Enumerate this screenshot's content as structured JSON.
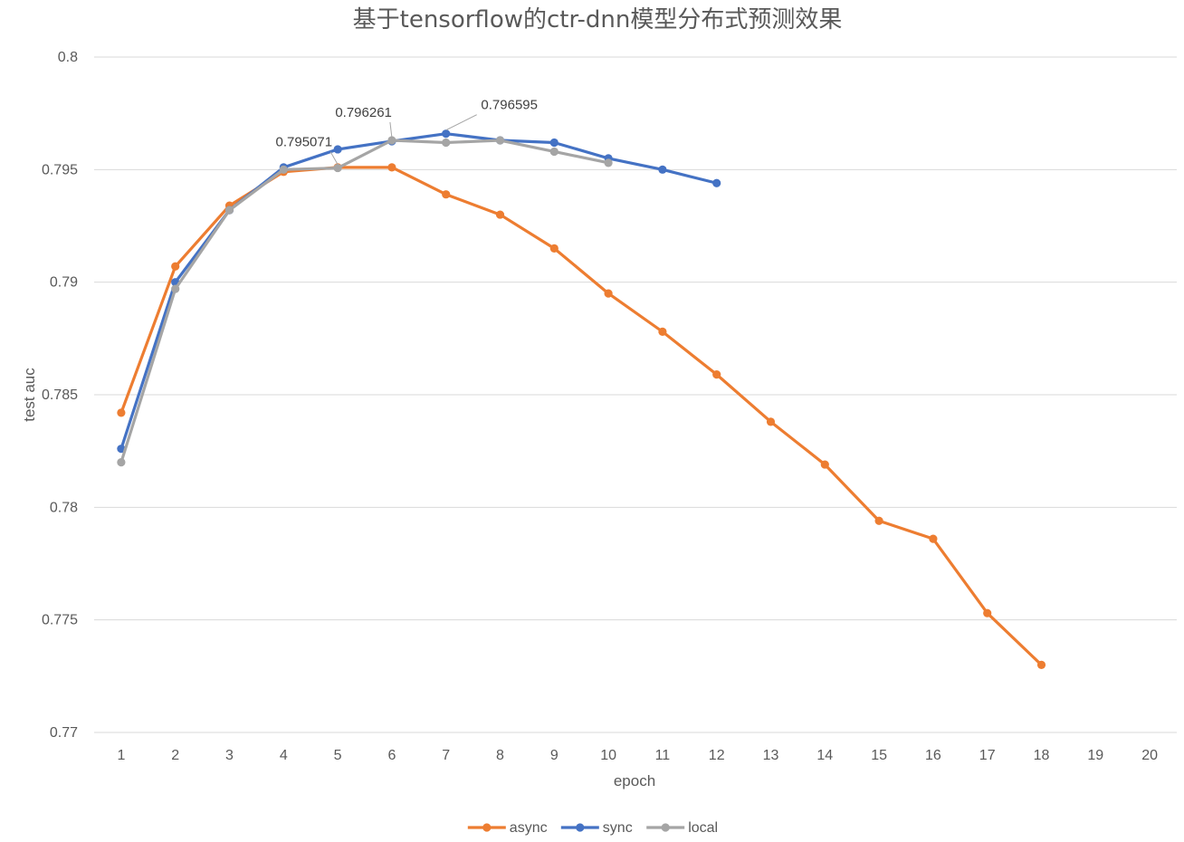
{
  "chart_data": {
    "type": "line",
    "title": "基于tensorflow的ctr-dnn模型分布式预测效果",
    "xlabel": "epoch",
    "ylabel": "test auc",
    "x": [
      1,
      2,
      3,
      4,
      5,
      6,
      7,
      8,
      9,
      10,
      11,
      12,
      13,
      14,
      15,
      16,
      17,
      18,
      19,
      20
    ],
    "x_tick_labels": [
      "1",
      "2",
      "3",
      "4",
      "5",
      "6",
      "7",
      "8",
      "9",
      "10",
      "11",
      "12",
      "13",
      "14",
      "15",
      "16",
      "17",
      "18",
      "19",
      "20"
    ],
    "ylim": [
      0.77,
      0.8
    ],
    "y_ticks": [
      0.77,
      0.775,
      0.78,
      0.785,
      0.79,
      0.795,
      0.8
    ],
    "y_tick_labels": [
      "0.77",
      "0.775",
      "0.78",
      "0.785",
      "0.79",
      "0.795",
      "0.8"
    ],
    "grid": "horizontal",
    "legend_position": "bottom",
    "series": [
      {
        "name": "async",
        "color": "#ED7D31",
        "x": [
          1,
          2,
          3,
          4,
          5,
          6,
          7,
          8,
          9,
          10,
          11,
          12,
          13,
          14,
          15,
          16,
          17,
          18
        ],
        "values": [
          0.7842,
          0.7907,
          0.7934,
          0.7949,
          0.7951,
          0.7951,
          0.7939,
          0.793,
          0.7915,
          0.7895,
          0.7878,
          0.7859,
          0.7838,
          0.7819,
          0.7794,
          0.7786,
          0.7753,
          0.773
        ]
      },
      {
        "name": "sync",
        "color": "#4472C4",
        "x": [
          1,
          2,
          3,
          4,
          5,
          6,
          7,
          8,
          9,
          10,
          11,
          12
        ],
        "values": [
          0.7826,
          0.79,
          0.7932,
          0.7951,
          0.7959,
          0.796261,
          0.796595,
          0.7963,
          0.7962,
          0.7955,
          0.795,
          0.7944
        ]
      },
      {
        "name": "local",
        "color": "#A5A5A5",
        "x": [
          1,
          2,
          3,
          4,
          5,
          6,
          7,
          8,
          9,
          10
        ],
        "values": [
          0.782,
          0.7897,
          0.7932,
          0.795,
          0.795071,
          0.7963,
          0.7962,
          0.7963,
          0.7958,
          0.7953
        ]
      }
    ],
    "annotations": [
      {
        "text": "0.795071",
        "series": "local",
        "x": 5
      },
      {
        "text": "0.796261",
        "series": "sync",
        "x": 6
      },
      {
        "text": "0.796595",
        "series": "sync",
        "x": 7
      }
    ],
    "colors": {
      "grid": "#D9D9D9",
      "text": "#595959",
      "annotation_text": "#404040",
      "annotation_leader": "#A5A5A5"
    }
  }
}
